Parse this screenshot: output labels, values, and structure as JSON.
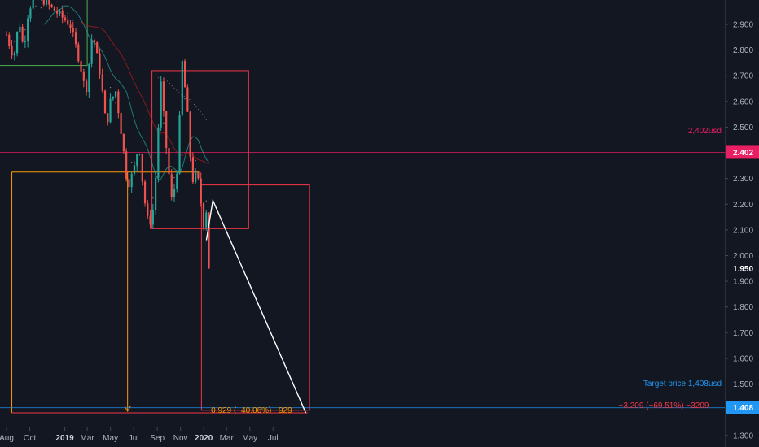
{
  "chart_data": {
    "type": "candlestick",
    "y_axis": {
      "range": [
        1.255,
        2.995
      ],
      "ticks": [
        "2.900",
        "2.800",
        "2.700",
        "2.600",
        "2.500",
        "2.400",
        "2.300",
        "2.200",
        "2.100",
        "2.000",
        "1.900",
        "1.800",
        "1.700",
        "1.600",
        "1.500",
        "1.400",
        "1.300"
      ]
    },
    "x_axis": {
      "labels": [
        {
          "text": "Aug",
          "bold": false
        },
        {
          "text": "Oct",
          "bold": false
        },
        {
          "text": "2019",
          "bold": true
        },
        {
          "text": "Mar",
          "bold": false
        },
        {
          "text": "May",
          "bold": false
        },
        {
          "text": "Jul",
          "bold": false
        },
        {
          "text": "Sep",
          "bold": false
        },
        {
          "text": "Nov",
          "bold": false
        },
        {
          "text": "2020",
          "bold": true
        },
        {
          "text": "Mar",
          "bold": false
        },
        {
          "text": "May",
          "bold": false
        },
        {
          "text": "Jul",
          "bold": false
        }
      ]
    },
    "price_badges": [
      {
        "value": "2.402",
        "color": "#e91e63",
        "text_color": "#ffffff"
      },
      {
        "value": "1.950",
        "color": "#131722",
        "text_color": "#ffffff"
      },
      {
        "value": "1.408",
        "color": "#2196f3",
        "text_color": "#ffffff"
      }
    ],
    "price_path": [
      {
        "date": "2018-08-01",
        "price": 2.86
      },
      {
        "date": "2018-08-20",
        "price": 2.77
      },
      {
        "date": "2018-09-03",
        "price": 2.92
      },
      {
        "date": "2018-09-15",
        "price": 2.8
      },
      {
        "date": "2018-09-27",
        "price": 2.95
      },
      {
        "date": "2018-10-10",
        "price": 3.0
      },
      {
        "date": "2018-11-01",
        "price": 3.0
      },
      {
        "date": "2018-12-01",
        "price": 2.96
      },
      {
        "date": "2019-01-15",
        "price": 2.9
      },
      {
        "date": "2019-02-10",
        "price": 2.75
      },
      {
        "date": "2019-02-25",
        "price": 2.63
      },
      {
        "date": "2019-03-15",
        "price": 2.87
      },
      {
        "date": "2019-04-05",
        "price": 2.7
      },
      {
        "date": "2019-04-20",
        "price": 2.5
      },
      {
        "date": "2019-05-01",
        "price": 2.6
      },
      {
        "date": "2019-05-15",
        "price": 2.64
      },
      {
        "date": "2019-06-01",
        "price": 2.45
      },
      {
        "date": "2019-06-15",
        "price": 2.27
      },
      {
        "date": "2019-07-01",
        "price": 2.33
      },
      {
        "date": "2019-07-15",
        "price": 2.44
      },
      {
        "date": "2019-07-27",
        "price": 2.24
      },
      {
        "date": "2019-08-10",
        "price": 2.11
      },
      {
        "date": "2019-08-24",
        "price": 2.2
      },
      {
        "date": "2019-09-10",
        "price": 2.68
      },
      {
        "date": "2019-09-27",
        "price": 2.38
      },
      {
        "date": "2019-10-10",
        "price": 2.2
      },
      {
        "date": "2019-10-25",
        "price": 2.36
      },
      {
        "date": "2019-11-05",
        "price": 2.76
      },
      {
        "date": "2019-11-18",
        "price": 2.58
      },
      {
        "date": "2019-12-01",
        "price": 2.29
      },
      {
        "date": "2019-12-15",
        "price": 2.32
      },
      {
        "date": "2020-01-01",
        "price": 2.12
      },
      {
        "date": "2020-01-08",
        "price": 2.18
      },
      {
        "date": "2020-01-15",
        "price": 1.95
      }
    ],
    "horizontal_lines": [
      {
        "price": 2.402,
        "label": "2,402usd",
        "color": "#e91e63"
      },
      {
        "price": 1.408,
        "label": "Target price 1,408usd",
        "color": "#2196f3"
      }
    ],
    "measurements": [
      {
        "label": "−0.929 (−40.06%) −929",
        "color": "#ff9800"
      },
      {
        "label": "−3.209 (−69.51%) −3209",
        "color": "#f23645"
      }
    ]
  }
}
